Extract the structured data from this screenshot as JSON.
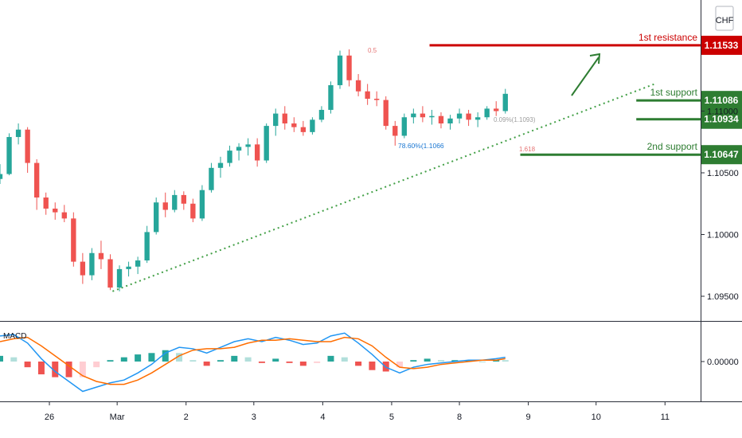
{
  "chart_data": {
    "type": "candlestick",
    "price_axis": {
      "currency": "CHF",
      "ticks": [
        "1.11000",
        "1.10500",
        "1.10000",
        "1.09500"
      ],
      "range": [
        1.093,
        1.119
      ]
    },
    "macd_axis": {
      "ticks": [
        "0.00000"
      ],
      "range": [
        -0.0028,
        0.0028
      ]
    },
    "x_axis": {
      "ticks": [
        "26",
        "Mar",
        "2",
        "3",
        "4",
        "5",
        "8",
        "9",
        "10",
        "11"
      ],
      "range": [
        0,
        61
      ]
    },
    "levels": [
      {
        "name": "1st resistance",
        "value": "1.11533",
        "color": "#cc0000"
      },
      {
        "name": "1st support",
        "value": "1.11086",
        "color": "#2e7d32"
      },
      {
        "name": "",
        "value": "1.10934",
        "color": "#2e7d32"
      },
      {
        "name": "2nd support",
        "value": "1.10647",
        "color": "#2e7d32"
      }
    ],
    "annotations": {
      "fib_top": "0.5",
      "fib_786": "78.60%(1.1066",
      "fib_mid": "0.09%(1.1093)",
      "fib_bottom": "1.618"
    },
    "indicator": {
      "name": "MACD"
    },
    "trendline": {
      "from": [
        9.8,
        1.0954
      ],
      "to": [
        57.0,
        1.1122
      ]
    },
    "candles": [
      [
        0.0,
        1.1045,
        1.1057,
        1.1041,
        1.1049
      ],
      [
        0.8,
        1.1049,
        1.1082,
        1.1048,
        1.1079
      ],
      [
        1.6,
        1.1079,
        1.109,
        1.1073,
        1.1085
      ],
      [
        2.4,
        1.1085,
        1.1087,
        1.105,
        1.1058
      ],
      [
        3.2,
        1.1058,
        1.1061,
        1.102,
        1.103
      ],
      [
        4.0,
        1.103,
        1.1034,
        1.1016,
        1.1021
      ],
      [
        4.8,
        1.1021,
        1.1026,
        1.1012,
        1.1018
      ],
      [
        5.6,
        1.1018,
        1.1024,
        1.101,
        1.1013
      ],
      [
        6.4,
        1.1013,
        1.1018,
        1.0974,
        1.0978
      ],
      [
        7.2,
        1.0978,
        1.0985,
        1.096,
        1.0967
      ],
      [
        8.0,
        1.0967,
        1.0989,
        1.0963,
        1.0985
      ],
      [
        8.8,
        1.0985,
        1.0995,
        1.0972,
        1.098
      ],
      [
        9.6,
        1.098,
        1.0984,
        1.0955,
        1.0957
      ],
      [
        10.4,
        1.0957,
        1.0975,
        1.0954,
        1.0972
      ],
      [
        11.2,
        1.0972,
        1.0978,
        1.0966,
        1.0974
      ],
      [
        12.0,
        1.0974,
        1.0982,
        1.0968,
        1.0979
      ],
      [
        12.8,
        1.0979,
        1.1007,
        1.0977,
        1.1002
      ],
      [
        13.6,
        1.1002,
        1.103,
        1.1,
        1.1026
      ],
      [
        14.4,
        1.1026,
        1.1034,
        1.1014,
        1.102
      ],
      [
        15.2,
        1.102,
        1.1036,
        1.1018,
        1.1032
      ],
      [
        16.0,
        1.1032,
        1.1035,
        1.102,
        1.1025
      ],
      [
        16.8,
        1.1025,
        1.1029,
        1.101,
        1.1013
      ],
      [
        17.6,
        1.1013,
        1.104,
        1.1011,
        1.1036
      ],
      [
        18.4,
        1.1036,
        1.1058,
        1.1034,
        1.1054
      ],
      [
        19.2,
        1.1054,
        1.1063,
        1.1046,
        1.1058
      ],
      [
        20.0,
        1.1058,
        1.1072,
        1.1055,
        1.1068
      ],
      [
        20.8,
        1.1068,
        1.1074,
        1.106,
        1.1071
      ],
      [
        21.6,
        1.1071,
        1.1078,
        1.1064,
        1.1073
      ],
      [
        22.4,
        1.1073,
        1.1078,
        1.1055,
        1.106
      ],
      [
        23.2,
        1.106,
        1.109,
        1.1058,
        1.1088
      ],
      [
        24.0,
        1.1088,
        1.1102,
        1.108,
        1.1098
      ],
      [
        24.8,
        1.1098,
        1.1104,
        1.1085,
        1.109
      ],
      [
        25.6,
        1.109,
        1.1095,
        1.1083,
        1.1087
      ],
      [
        26.4,
        1.1087,
        1.1092,
        1.108,
        1.1083
      ],
      [
        27.2,
        1.1083,
        1.1095,
        1.1081,
        1.1093
      ],
      [
        28.0,
        1.1093,
        1.1104,
        1.1091,
        1.1101
      ],
      [
        28.8,
        1.1101,
        1.1124,
        1.1098,
        1.1121
      ],
      [
        29.6,
        1.1121,
        1.1149,
        1.1118,
        1.1145
      ],
      [
        30.4,
        1.1145,
        1.115,
        1.112,
        1.1125
      ],
      [
        31.2,
        1.1125,
        1.113,
        1.1112,
        1.1116
      ],
      [
        32.0,
        1.1116,
        1.1122,
        1.1105,
        1.111
      ],
      [
        32.8,
        1.111,
        1.1116,
        1.1104,
        1.1109
      ],
      [
        33.6,
        1.1109,
        1.1112,
        1.1085,
        1.1088
      ],
      [
        34.4,
        1.1088,
        1.1092,
        1.1072,
        1.108
      ],
      [
        35.2,
        1.108,
        1.1098,
        1.1078,
        1.1095
      ],
      [
        36.0,
        1.1095,
        1.1102,
        1.109,
        1.1098
      ],
      [
        36.8,
        1.1098,
        1.1104,
        1.1091,
        1.1095
      ],
      [
        37.6,
        1.1095,
        1.1101,
        1.1089,
        1.1096
      ],
      [
        38.4,
        1.1096,
        1.1099,
        1.1086,
        1.109
      ],
      [
        39.2,
        1.109,
        1.1097,
        1.1085,
        1.1094
      ],
      [
        40.0,
        1.1094,
        1.1102,
        1.109,
        1.1098
      ],
      [
        40.8,
        1.1098,
        1.1101,
        1.1088,
        1.1093
      ],
      [
        41.6,
        1.1093,
        1.1099,
        1.1087,
        1.1095
      ],
      [
        42.4,
        1.1095,
        1.1104,
        1.1093,
        1.1102
      ],
      [
        43.2,
        1.1102,
        1.1108,
        1.1096,
        1.11
      ],
      [
        44.0,
        1.11,
        1.1118,
        1.1098,
        1.1114
      ]
    ],
    "macd": [
      [
        0.0,
        0.0018,
        0.0014
      ],
      [
        1.2,
        0.0019,
        0.0016
      ],
      [
        2.4,
        0.0013,
        0.0017
      ],
      [
        3.6,
        0.0002,
        0.0011
      ],
      [
        4.8,
        -0.0007,
        0.0004
      ],
      [
        6.0,
        -0.0014,
        -0.0003
      ],
      [
        7.2,
        -0.0021,
        -0.001
      ],
      [
        8.4,
        -0.0018,
        -0.0014
      ],
      [
        9.6,
        -0.0015,
        -0.0016
      ],
      [
        10.8,
        -0.0013,
        -0.0016
      ],
      [
        12.0,
        -0.0008,
        -0.0013
      ],
      [
        13.2,
        -0.0002,
        -0.0008
      ],
      [
        14.4,
        0.0006,
        -0.0002
      ],
      [
        15.6,
        0.001,
        0.0004
      ],
      [
        16.8,
        0.0009,
        0.0008
      ],
      [
        18.0,
        0.0006,
        0.0009
      ],
      [
        19.2,
        0.001,
        0.0009
      ],
      [
        20.4,
        0.0014,
        0.001
      ],
      [
        21.6,
        0.0016,
        0.0013
      ],
      [
        22.8,
        0.0014,
        0.0015
      ],
      [
        24.0,
        0.0017,
        0.0015
      ],
      [
        25.2,
        0.0015,
        0.0016
      ],
      [
        26.4,
        0.0012,
        0.0015
      ],
      [
        27.6,
        0.0013,
        0.0014
      ],
      [
        28.8,
        0.0018,
        0.0014
      ],
      [
        30.0,
        0.002,
        0.0017
      ],
      [
        31.2,
        0.0013,
        0.0016
      ],
      [
        32.4,
        0.0005,
        0.0011
      ],
      [
        33.6,
        -0.0004,
        0.0003
      ],
      [
        34.8,
        -0.0008,
        -0.0004
      ],
      [
        36.0,
        -0.0004,
        -0.0005
      ],
      [
        37.2,
        -0.0002,
        -0.0004
      ],
      [
        38.4,
        -0.0001,
        -0.0002
      ],
      [
        39.6,
        0.0,
        -0.0001
      ],
      [
        40.8,
        0.0001,
        0.0
      ],
      [
        42.0,
        0.0001,
        0.0001
      ],
      [
        43.2,
        0.0002,
        0.0001
      ],
      [
        44.0,
        0.0003,
        0.0002
      ]
    ]
  }
}
